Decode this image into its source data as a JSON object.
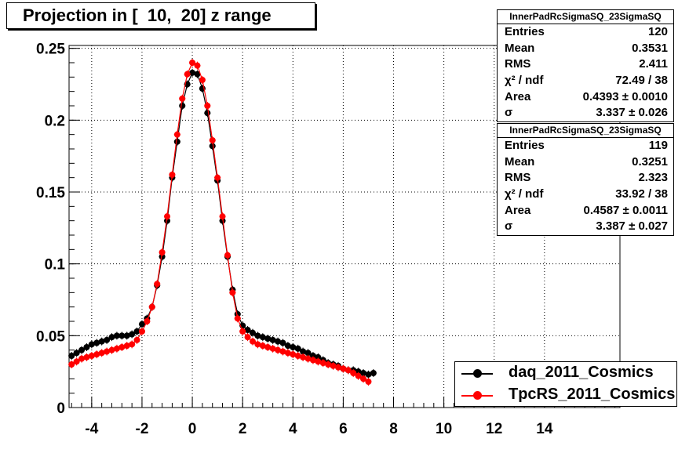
{
  "title": "Projection in [  10,  20] z range",
  "stats": [
    {
      "name": "InnerPadRcSigmaSQ_23SigmaSQ",
      "rows": [
        {
          "label": "Entries",
          "value": "120"
        },
        {
          "label": "Mean",
          "value": "0.3531"
        },
        {
          "label": "RMS",
          "value": "2.411"
        },
        {
          "label": "χ² / ndf",
          "value": "72.49 / 38"
        },
        {
          "label": "Area",
          "value": "0.4393 ± 0.0010"
        },
        {
          "label": "σ",
          "value": "3.337 ± 0.026"
        }
      ]
    },
    {
      "name": "InnerPadRcSigmaSQ_23SigmaSQ",
      "rows": [
        {
          "label": "Entries",
          "value": "119"
        },
        {
          "label": "Mean",
          "value": "0.3251"
        },
        {
          "label": "RMS",
          "value": "2.323"
        },
        {
          "label": "χ² / ndf",
          "value": "33.92 / 38"
        },
        {
          "label": "Area",
          "value": "0.4587 ± 0.0011"
        },
        {
          "label": "σ",
          "value": "3.387 ± 0.027"
        }
      ]
    }
  ],
  "legend": [
    {
      "label": "daq_2011_Cosmics",
      "color": "#000000"
    },
    {
      "label": "TpcRS_2011_Cosmics",
      "color": "#ff0000"
    }
  ],
  "chart_data": {
    "type": "scatter",
    "title": "Projection in [  10,  20] z range",
    "xlim": [
      -4.9,
      17.0
    ],
    "ylim": [
      0,
      0.252
    ],
    "xticks": [
      "-4",
      "-2",
      "0",
      "2",
      "4",
      "6",
      "8",
      "10",
      "12",
      "14"
    ],
    "yticks": [
      "0",
      "0.05",
      "0.1",
      "0.15",
      "0.2",
      "0.25"
    ],
    "grid": true,
    "legend_position": "bottom-right",
    "series": [
      {
        "name": "daq_2011_Cosmics",
        "color": "#000000",
        "x": [
          -4.8,
          -4.6,
          -4.4,
          -4.2,
          -4.0,
          -3.8,
          -3.6,
          -3.4,
          -3.2,
          -3.0,
          -2.8,
          -2.6,
          -2.4,
          -2.2,
          -2.0,
          -1.8,
          -1.6,
          -1.4,
          -1.2,
          -1.0,
          -0.8,
          -0.6,
          -0.4,
          -0.2,
          0.0,
          0.2,
          0.4,
          0.6,
          0.8,
          1.0,
          1.2,
          1.4,
          1.6,
          1.8,
          2.0,
          2.2,
          2.4,
          2.6,
          2.8,
          3.0,
          3.2,
          3.4,
          3.6,
          3.8,
          4.0,
          4.2,
          4.4,
          4.6,
          4.8,
          5.0,
          5.2,
          5.4,
          5.6,
          5.8,
          6.0,
          6.2,
          6.4,
          6.6,
          6.8,
          7.0,
          7.2
        ],
        "y": [
          0.036,
          0.038,
          0.04,
          0.042,
          0.044,
          0.045,
          0.046,
          0.047,
          0.049,
          0.05,
          0.05,
          0.05,
          0.051,
          0.053,
          0.058,
          0.062,
          0.07,
          0.085,
          0.105,
          0.13,
          0.16,
          0.185,
          0.21,
          0.225,
          0.233,
          0.232,
          0.222,
          0.205,
          0.182,
          0.158,
          0.13,
          0.105,
          0.082,
          0.065,
          0.057,
          0.054,
          0.052,
          0.05,
          0.049,
          0.048,
          0.047,
          0.046,
          0.045,
          0.043,
          0.042,
          0.041,
          0.039,
          0.038,
          0.036,
          0.035,
          0.033,
          0.031,
          0.03,
          0.029,
          0.027,
          0.026,
          0.026,
          0.025,
          0.024,
          0.023,
          0.024
        ]
      },
      {
        "name": "TpcRS_2011_Cosmics",
        "color": "#ff0000",
        "x": [
          -4.8,
          -4.6,
          -4.4,
          -4.2,
          -4.0,
          -3.8,
          -3.6,
          -3.4,
          -3.2,
          -3.0,
          -2.8,
          -2.6,
          -2.4,
          -2.2,
          -2.0,
          -1.8,
          -1.6,
          -1.4,
          -1.2,
          -1.0,
          -0.8,
          -0.6,
          -0.4,
          -0.2,
          0.0,
          0.2,
          0.4,
          0.6,
          0.8,
          1.0,
          1.2,
          1.4,
          1.6,
          1.8,
          2.0,
          2.2,
          2.4,
          2.6,
          2.8,
          3.0,
          3.2,
          3.4,
          3.6,
          3.8,
          4.0,
          4.2,
          4.4,
          4.6,
          4.8,
          5.0,
          5.2,
          5.4,
          5.6,
          5.8,
          6.0,
          6.2,
          6.4,
          6.6,
          6.8,
          7.0
        ],
        "y": [
          0.03,
          0.032,
          0.034,
          0.035,
          0.036,
          0.037,
          0.038,
          0.039,
          0.04,
          0.041,
          0.042,
          0.043,
          0.044,
          0.047,
          0.053,
          0.06,
          0.07,
          0.086,
          0.108,
          0.133,
          0.162,
          0.19,
          0.215,
          0.232,
          0.24,
          0.238,
          0.228,
          0.21,
          0.186,
          0.16,
          0.133,
          0.106,
          0.08,
          0.062,
          0.053,
          0.049,
          0.046,
          0.044,
          0.043,
          0.042,
          0.041,
          0.04,
          0.039,
          0.038,
          0.037,
          0.036,
          0.035,
          0.034,
          0.033,
          0.032,
          0.031,
          0.03,
          0.029,
          0.028,
          0.027,
          0.026,
          0.024,
          0.022,
          0.02,
          0.018
        ]
      }
    ]
  }
}
